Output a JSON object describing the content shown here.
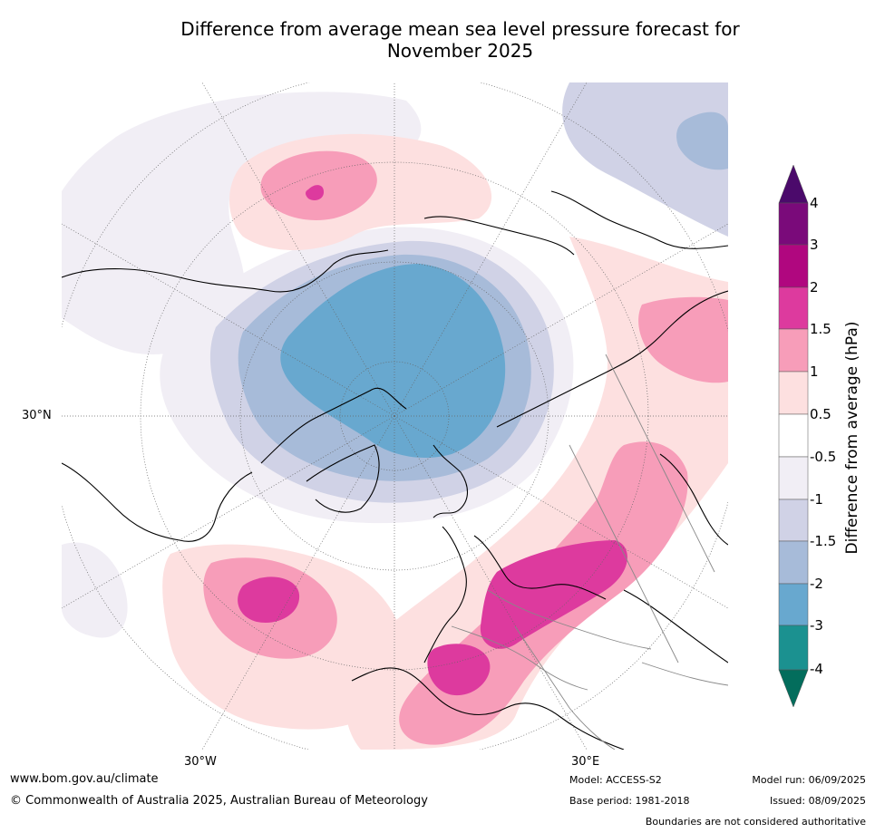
{
  "title_line1": "Difference from average mean sea level pressure forecast for",
  "title_line2": "November 2025",
  "map": {
    "labels": {
      "lat30n": "30°N",
      "lon30w": "30°W",
      "lon30e": "30°E"
    }
  },
  "colorbar": {
    "title": "Difference from average (hPa)",
    "ticks": [
      "4",
      "3",
      "2",
      "1.5",
      "1",
      "0.5",
      "-0.5",
      "-1",
      "-1.5",
      "-2",
      "-3",
      "-4"
    ],
    "colors": {
      "above_4": "#4b0a6b",
      "3_to_4": "#7a0a7a",
      "2_to_3": "#b0077f",
      "1_5_to_2": "#dd3a9e",
      "1_to_1_5": "#f79db9",
      "0_5_to_1": "#fde0e0",
      "neutral": "#ffffff",
      "m0_5_to_m1": "#f1eef5",
      "m1_to_m1_5": "#d0d2e6",
      "m1_5_to_m2": "#a7bbd9",
      "m2_to_m3": "#68a8cf",
      "m3_to_m4": "#1b9190",
      "below_m4": "#036d5c"
    }
  },
  "footer": {
    "website": "www.bom.gov.au/climate",
    "copyright": "© Commonwealth of Australia 2025, Australian Bureau of Meteorology",
    "model": "Model: ACCESS-S2",
    "base_period": "Base period: 1981-2018",
    "model_run": "Model run: 06/09/2025",
    "issued": "Issued: 08/09/2025",
    "disclaimer": "Boundaries are not considered authoritative"
  }
}
